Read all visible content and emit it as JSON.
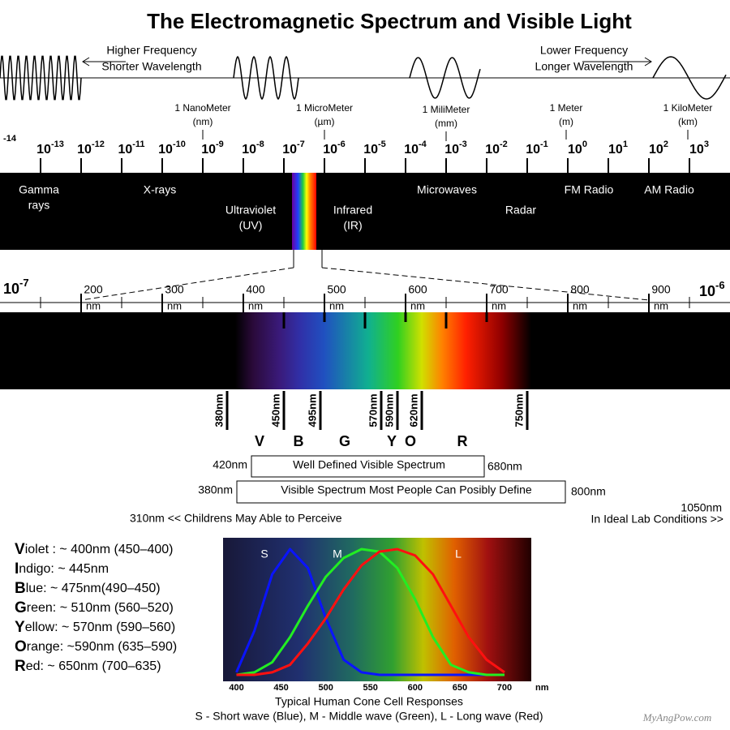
{
  "title": "The Electromagnetic Spectrum and Visible Light",
  "frequency_notes": {
    "left": [
      "Higher Frequency",
      "Shorter Wavelength"
    ],
    "right": [
      "Lower Frequency",
      "Longer Wavelength"
    ]
  },
  "units": [
    {
      "name": "1 NanoMeter",
      "symbol": "(nm)"
    },
    {
      "name": "1 MicroMeter",
      "symbol": "(µm)"
    },
    {
      "name": "1 MiliMeter",
      "symbol": "(mm)"
    },
    {
      "name": "1 Meter",
      "symbol": "(m)"
    },
    {
      "name": "1 KiloMeter",
      "symbol": "(km)"
    }
  ],
  "scale": {
    "base": "10",
    "leading_exponent": -14,
    "exponents": [
      -13,
      -12,
      -11,
      -10,
      -9,
      -8,
      -7,
      -6,
      -5,
      -4,
      -3,
      -2,
      -1,
      0,
      1,
      2,
      3
    ]
  },
  "bands": [
    {
      "lines": [
        "Gamma",
        "rays"
      ]
    },
    {
      "lines": [
        "X-rays"
      ]
    },
    {
      "lines": [
        "Ultraviolet",
        "(UV)"
      ]
    },
    {
      "lines": [
        "Infrared",
        "(IR)"
      ]
    },
    {
      "lines": [
        "Microwaves"
      ]
    },
    {
      "lines": [
        "Radar"
      ]
    },
    {
      "lines": [
        "FM Radio"
      ]
    },
    {
      "lines": [
        "AM Radio"
      ]
    }
  ],
  "zoom": {
    "left": {
      "base": "10",
      "exp": -7
    },
    "right": {
      "base": "10",
      "exp": -6
    },
    "ticks": [
      {
        "number": 200,
        "unit": "nm"
      },
      {
        "number": 300,
        "unit": "nm"
      },
      {
        "number": 400,
        "unit": "nm"
      },
      {
        "number": 500,
        "unit": "nm"
      },
      {
        "number": 600,
        "unit": "nm"
      },
      {
        "number": 700,
        "unit": "nm"
      },
      {
        "number": 800,
        "unit": "nm"
      },
      {
        "number": 900,
        "unit": "nm"
      }
    ]
  },
  "markers": [
    {
      "value": 380,
      "label": "380nm"
    },
    {
      "value": 450,
      "label": "450nm"
    },
    {
      "value": 495,
      "label": "495nm"
    },
    {
      "value": 570,
      "label": "570nm"
    },
    {
      "value": 590,
      "label": "590nm"
    },
    {
      "value": 620,
      "label": "620nm"
    },
    {
      "value": 750,
      "label": "750nm"
    }
  ],
  "letters": [
    "V",
    "B",
    "G",
    "Y",
    "O",
    "R"
  ],
  "ranges": [
    {
      "start": "420nm",
      "label": "Well Defined Visible Spectrum",
      "end": "680nm"
    },
    {
      "start": "380nm",
      "label": "Visible Spectrum Most People Can Posibly Define",
      "end": "800nm"
    }
  ],
  "extended": {
    "end": "1050nm",
    "left": "310nm << Childrens May Able to Perceive",
    "right": "In Ideal Lab Conditions >>"
  },
  "color_list": [
    "Violet : ~ 400nm (450–400)",
    "Indigo: ~ 445nm",
    "Blue: ~ 475nm(490–450)",
    "Green: ~ 510nm (560–520)",
    "Yellow: ~ 570nm (590–560)",
    "Orange: ~590nm (635–590)",
    "Red: ~ 650nm (700–635)"
  ],
  "cone_chart": {
    "type": "line",
    "xlim": [
      385,
      730
    ],
    "ylim": [
      0,
      1
    ],
    "xticks": [
      400,
      450,
      500,
      550,
      600,
      650,
      700
    ],
    "unit": "nm",
    "x": [
      400,
      420,
      440,
      460,
      480,
      500,
      520,
      540,
      560,
      580,
      600,
      620,
      640,
      660,
      680,
      700
    ],
    "series": [
      {
        "name": "S",
        "color": "#0a14ff",
        "values": [
          0.02,
          0.35,
          0.8,
          1.0,
          0.85,
          0.45,
          0.12,
          0.02,
          0,
          0,
          0,
          0,
          0,
          0,
          0,
          0
        ]
      },
      {
        "name": "M",
        "color": "#22ee22",
        "values": [
          0,
          0.02,
          0.1,
          0.3,
          0.55,
          0.78,
          0.93,
          1.0,
          0.98,
          0.85,
          0.6,
          0.3,
          0.08,
          0.02,
          0,
          0
        ]
      },
      {
        "name": "L",
        "color": "#ff1010",
        "values": [
          0,
          0,
          0.02,
          0.08,
          0.25,
          0.45,
          0.68,
          0.87,
          0.98,
          1.0,
          0.95,
          0.8,
          0.55,
          0.3,
          0.12,
          0.02
        ]
      }
    ],
    "caption": "Typical Human Cone Cell Responses",
    "legend": "S - Short wave (Blue), M - Middle wave (Green), L - Long wave (Red)"
  },
  "watermark": "MyAngPow.com"
}
